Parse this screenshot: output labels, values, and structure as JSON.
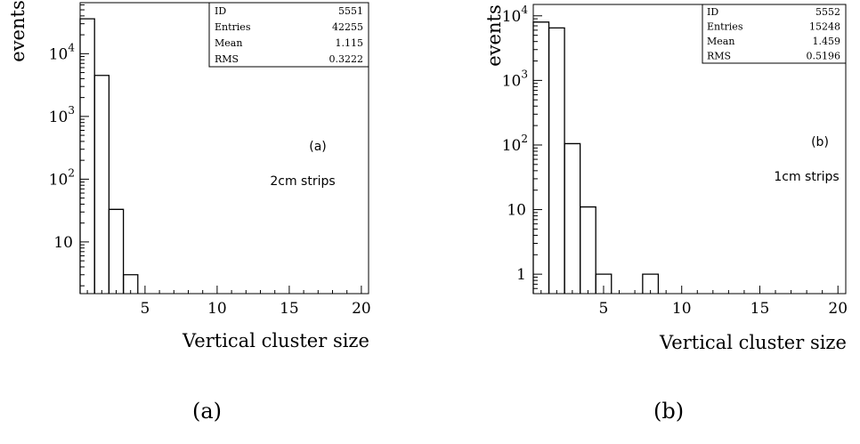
{
  "chart_data": [
    {
      "type": "histogram",
      "xlabel": "Vertical cluster size",
      "ylabel": "events",
      "xlim": [
        0.5,
        20.5
      ],
      "ylim": [
        1.5,
        65000
      ],
      "yscale": "log",
      "xticks": [
        "5",
        "10",
        "15",
        "20"
      ],
      "yticks": [
        {
          "v": 10,
          "base": "10",
          "exp": ""
        },
        {
          "v": 100,
          "base": "10",
          "exp": "2"
        },
        {
          "v": 1000,
          "base": "10",
          "exp": "3"
        },
        {
          "v": 10000,
          "base": "10",
          "exp": "4"
        }
      ],
      "bins": [
        {
          "x": 1,
          "y": 36000
        },
        {
          "x": 2,
          "y": 4500
        },
        {
          "x": 3,
          "y": 33
        },
        {
          "x": 4,
          "y": 3
        }
      ],
      "stats": [
        {
          "label": "ID",
          "value": "5551"
        },
        {
          "label": "Entries",
          "value": "42255"
        },
        {
          "label": "Mean",
          "value": "1.115"
        },
        {
          "label": "RMS",
          "value": "0.3222"
        }
      ],
      "annotations": [
        "(a)",
        "2cm strips"
      ],
      "caption": "(a)"
    },
    {
      "type": "histogram",
      "xlabel": "Vertical cluster size",
      "ylabel": "events",
      "xlim": [
        0.5,
        20.5
      ],
      "ylim": [
        0.5,
        15000
      ],
      "yscale": "log",
      "xticks": [
        "5",
        "10",
        "15",
        "20"
      ],
      "yticks": [
        {
          "v": 1,
          "base": "1",
          "exp": ""
        },
        {
          "v": 10,
          "base": "10",
          "exp": ""
        },
        {
          "v": 100,
          "base": "10",
          "exp": "2"
        },
        {
          "v": 1000,
          "base": "10",
          "exp": "3"
        },
        {
          "v": 10000,
          "base": "10",
          "exp": "4"
        }
      ],
      "bins": [
        {
          "x": 1,
          "y": 8000
        },
        {
          "x": 2,
          "y": 6500
        },
        {
          "x": 3,
          "y": 105
        },
        {
          "x": 4,
          "y": 11
        },
        {
          "x": 5,
          "y": 1
        },
        {
          "x": 8,
          "y": 1
        }
      ],
      "stats": [
        {
          "label": "ID",
          "value": "5552"
        },
        {
          "label": "Entries",
          "value": "15248"
        },
        {
          "label": "Mean",
          "value": "1.459"
        },
        {
          "label": "RMS",
          "value": "0.5196"
        }
      ],
      "annotations": [
        "(b)",
        "1cm strips"
      ],
      "caption": "(b)"
    }
  ]
}
